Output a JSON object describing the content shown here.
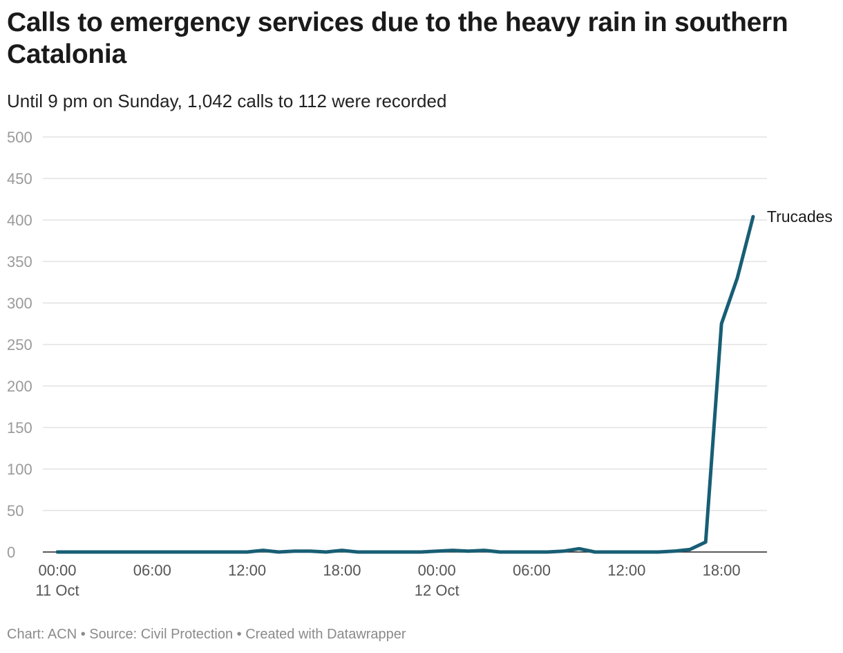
{
  "chart_data": {
    "type": "line",
    "title": "Calls to emergency services due to the heavy rain in southern Catalonia",
    "subtitle": "Until 9 pm on Sunday, 1,042 calls to 112 were recorded",
    "xlabel": "",
    "ylabel": "",
    "ylim": [
      0,
      500
    ],
    "y_ticks": [
      "0",
      "50",
      "100",
      "150",
      "200",
      "250",
      "300",
      "350",
      "400",
      "450",
      "500"
    ],
    "x_hours_range": [
      0,
      43
    ],
    "x_ticks": [
      {
        "hour": 0,
        "label": "00:00",
        "sublabel": "11 Oct"
      },
      {
        "hour": 6,
        "label": "06:00",
        "sublabel": ""
      },
      {
        "hour": 12,
        "label": "12:00",
        "sublabel": ""
      },
      {
        "hour": 18,
        "label": "18:00",
        "sublabel": ""
      },
      {
        "hour": 24,
        "label": "00:00",
        "sublabel": "12 Oct"
      },
      {
        "hour": 30,
        "label": "06:00",
        "sublabel": ""
      },
      {
        "hour": 36,
        "label": "12:00",
        "sublabel": ""
      },
      {
        "hour": 42,
        "label": "18:00",
        "sublabel": ""
      }
    ],
    "series": [
      {
        "name": "Trucades",
        "color": "#185e74",
        "x": [
          0,
          1,
          2,
          3,
          4,
          5,
          6,
          7,
          8,
          9,
          10,
          11,
          12,
          13,
          14,
          15,
          16,
          17,
          18,
          19,
          20,
          21,
          22,
          23,
          24,
          25,
          26,
          27,
          28,
          29,
          30,
          31,
          32,
          33,
          34,
          35,
          36,
          37,
          38,
          39,
          40,
          41,
          42,
          43,
          44
        ],
        "values": [
          0,
          0,
          0,
          0,
          0,
          0,
          0,
          0,
          0,
          0,
          0,
          0,
          0,
          2,
          0,
          1,
          1,
          0,
          2,
          0,
          0,
          0,
          0,
          0,
          1,
          2,
          1,
          2,
          0,
          0,
          0,
          0,
          1,
          4,
          0,
          0,
          0,
          0,
          0,
          1,
          3,
          12,
          275,
          330,
          404
        ]
      }
    ]
  },
  "footer": "Chart: ACN • Source: Civil Protection • Created with Datawrapper"
}
